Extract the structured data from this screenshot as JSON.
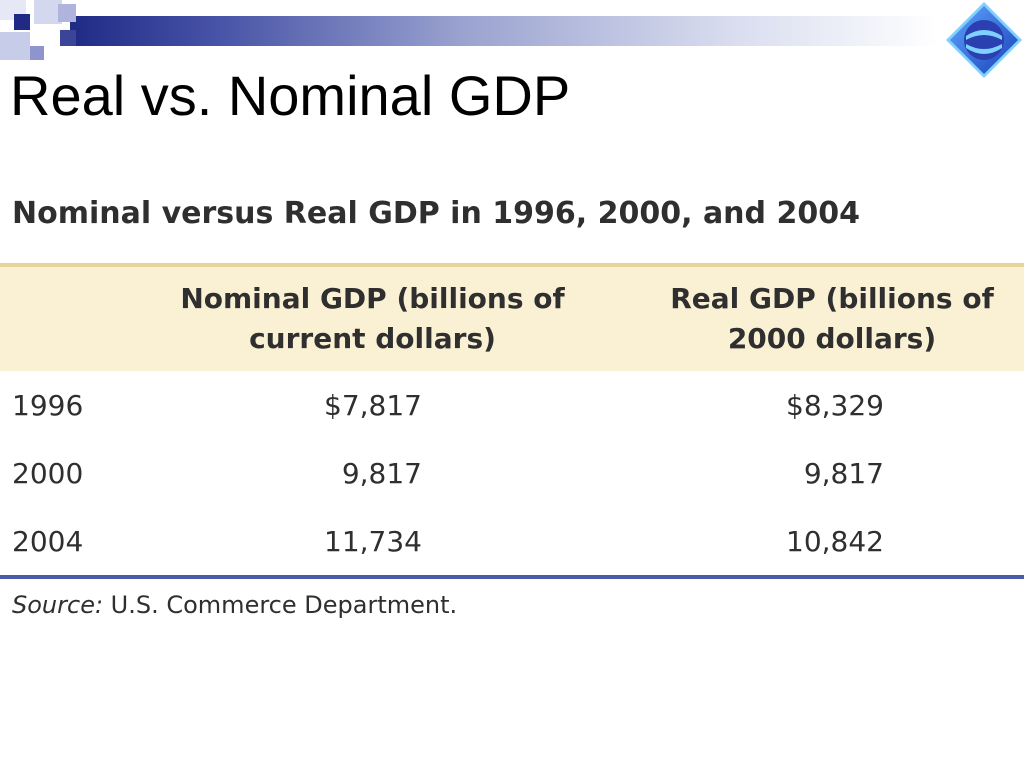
{
  "slide": {
    "title": "Real vs. Nominal GDP"
  },
  "table": {
    "caption": "Nominal versus Real GDP in 1996, 2000, and 2004",
    "headers": {
      "nominal_line1": "Nominal GDP (billions of",
      "nominal_line2": "current dollars)",
      "real_line1": "Real GDP (billions of",
      "real_line2": "2000 dollars)"
    },
    "rows": [
      {
        "year": "1996",
        "nominal": "$7,817",
        "real": "$8,329"
      },
      {
        "year": "2000",
        "nominal": "9,817",
        "real": "9,817"
      },
      {
        "year": "2004",
        "nominal": "11,734",
        "real": "10,842"
      }
    ],
    "source_label": "Source:",
    "source_text": " U.S. Commerce Department."
  },
  "colors": {
    "header_fill": "#faf1d4",
    "header_rule": "#e6d49a",
    "bottom_rule": "#4a5ba8",
    "band_dark": "#1f2a86",
    "logo_blue": "#2a63d6"
  },
  "icons": {
    "logo": "diamond-logo-icon"
  }
}
